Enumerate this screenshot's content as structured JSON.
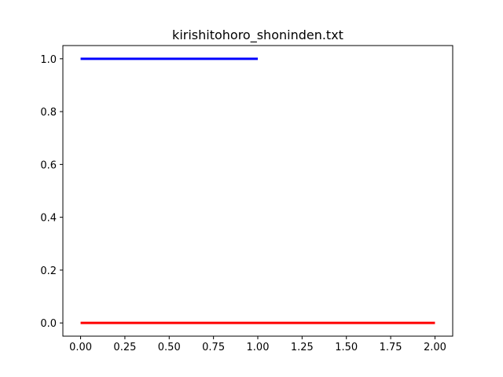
{
  "chart_data": {
    "type": "line",
    "title": "kirishitohoro_shoninden.txt",
    "xlabel": "",
    "ylabel": "",
    "xlim": [
      -0.1,
      2.1
    ],
    "ylim": [
      -0.05,
      1.05
    ],
    "xticks": [
      0.0,
      0.25,
      0.5,
      0.75,
      1.0,
      1.25,
      1.5,
      1.75,
      2.0
    ],
    "xtick_labels": [
      "0.00",
      "0.25",
      "0.50",
      "0.75",
      "1.00",
      "1.25",
      "1.50",
      "1.75",
      "2.00"
    ],
    "yticks": [
      0.0,
      0.2,
      0.4,
      0.6,
      0.8,
      1.0
    ],
    "ytick_labels": [
      "0.0",
      "0.2",
      "0.4",
      "0.6",
      "0.8",
      "1.0"
    ],
    "grid": false,
    "legend": "none",
    "series": [
      {
        "color": "#0000ff",
        "x": [
          0.0,
          1.0
        ],
        "y": [
          1.0,
          1.0
        ]
      },
      {
        "color": "#ff0000",
        "x": [
          0.0,
          2.0
        ],
        "y": [
          0.0,
          0.0
        ]
      }
    ]
  }
}
